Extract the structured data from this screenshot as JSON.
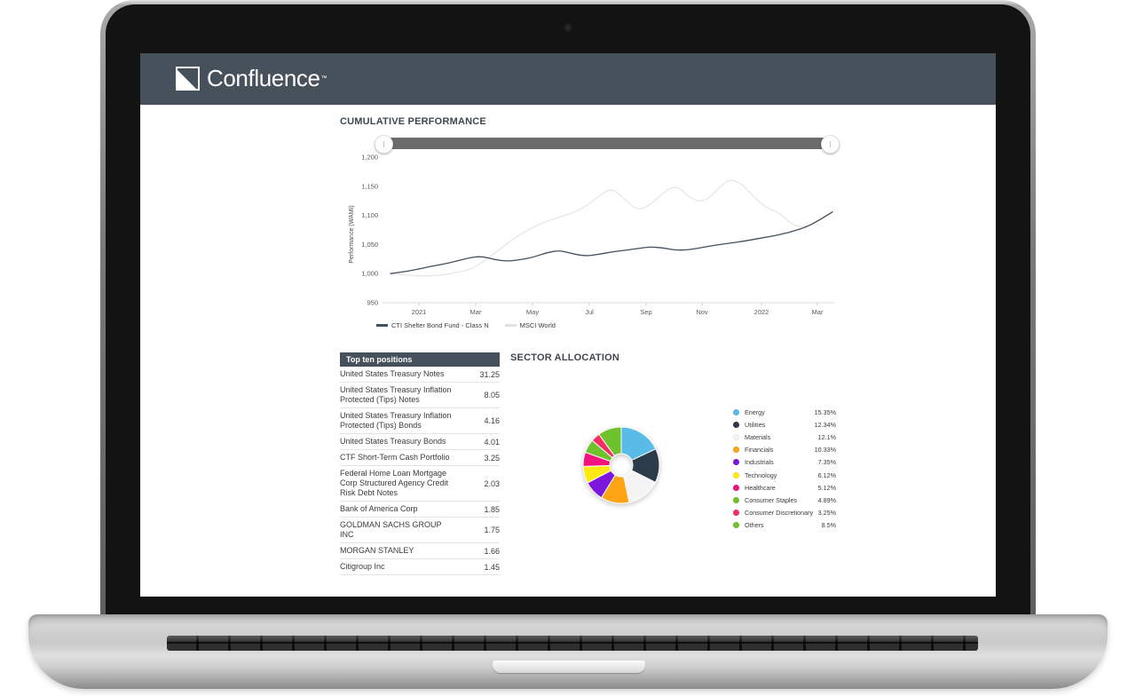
{
  "header": {
    "brand": "Confluence",
    "trademark": "™"
  },
  "performance": {
    "title": "CUMULATIVE PERFORMANCE",
    "legend": [
      {
        "label": "CTI Shelter Bond Fund - Class N",
        "color": "#43505e"
      },
      {
        "label": "MSCI World",
        "color": "#e2e2e2"
      }
    ]
  },
  "positions": {
    "title": "Top ten positions",
    "rows": [
      {
        "name": "United States Treasury Notes",
        "value": "31.25"
      },
      {
        "name": "United States Treasury Inflation Protected (Tips) Notes",
        "value": "8.05"
      },
      {
        "name": "United States Treasury Inflation Protected (Tips) Bonds",
        "value": "4.16"
      },
      {
        "name": "United States Treasury Bonds",
        "value": "4.01"
      },
      {
        "name": "CTF Short-Term Cash Portfolio",
        "value": "3.25"
      },
      {
        "name": "Federal Home Loan Mortgage Corp Structured Agency Credit Risk Debt Notes",
        "value": "2.03"
      },
      {
        "name": "Bank of America Corp",
        "value": "1.85"
      },
      {
        "name": "GOLDMAN SACHS GROUP INC",
        "value": "1.75"
      },
      {
        "name": "MORGAN STANLEY",
        "value": "1.66"
      },
      {
        "name": "Citigroup Inc",
        "value": "1.45"
      }
    ]
  },
  "sector": {
    "title": "SECTOR ALLOCATION"
  },
  "chart_data": [
    {
      "type": "line",
      "title": "CUMULATIVE PERFORMANCE",
      "ylabel": "Performance (WAMI)",
      "ylim": [
        950,
        1200
      ],
      "y_ticks": [
        "1,200",
        "1,150",
        "1,100",
        "1,050",
        "1,000",
        "950"
      ],
      "y_tick_values": [
        1200,
        1150,
        1100,
        1050,
        1000,
        950
      ],
      "x_ticks": [
        "2021",
        "Mar",
        "May",
        "Jul",
        "Sep",
        "Nov",
        "2022",
        "Mar"
      ],
      "grid": false,
      "legend_position": "bottom",
      "series": [
        {
          "name": "MSCI World",
          "color": "#e7e7e7",
          "values": [
            1000,
            998,
            996,
            996,
            998,
            1001,
            1006,
            1018,
            1035,
            1052,
            1068,
            1080,
            1090,
            1097,
            1104,
            1115,
            1132,
            1148,
            1128,
            1108,
            1118,
            1140,
            1152,
            1130,
            1122,
            1140,
            1163,
            1155,
            1130,
            1112,
            1103,
            1082,
            1080,
            1092,
            1106
          ]
        },
        {
          "name": "CTI Shelter Bond Fund - Class N",
          "color": "#434f5c",
          "values": [
            1000,
            1003,
            1007,
            1012,
            1016,
            1021,
            1027,
            1030,
            1024,
            1021,
            1024,
            1028,
            1036,
            1040,
            1034,
            1030,
            1033,
            1037,
            1040,
            1043,
            1046,
            1044,
            1040,
            1041,
            1045,
            1049,
            1052,
            1055,
            1059,
            1063,
            1067,
            1073,
            1080,
            1092,
            1106
          ]
        }
      ]
    },
    {
      "type": "pie",
      "donut": true,
      "title": "SECTOR ALLOCATION",
      "slices": [
        {
          "label": "Energy",
          "pct": 15.35,
          "color": "#59bbe8"
        },
        {
          "label": "Utilities",
          "pct": 12.34,
          "color": "#2c3b49"
        },
        {
          "label": "Materials",
          "pct": 12.1,
          "color": "#f4f4f4"
        },
        {
          "label": "Financials",
          "pct": 10.33,
          "color": "#ffa415"
        },
        {
          "label": "Industrials",
          "pct": 7.35,
          "color": "#7d17dc"
        },
        {
          "label": "Technology",
          "pct": 6.12,
          "color": "#ffe813"
        },
        {
          "label": "Healthcare",
          "pct": 5.12,
          "color": "#f2137f"
        },
        {
          "label": "Consumer Staples",
          "pct": 4.89,
          "color": "#6fc22e"
        },
        {
          "label": "Consumer Discretionary",
          "pct": 3.25,
          "color": "#f92c66"
        },
        {
          "label": "Others",
          "pct": 8.5,
          "color": "#6fc22e"
        }
      ]
    }
  ]
}
